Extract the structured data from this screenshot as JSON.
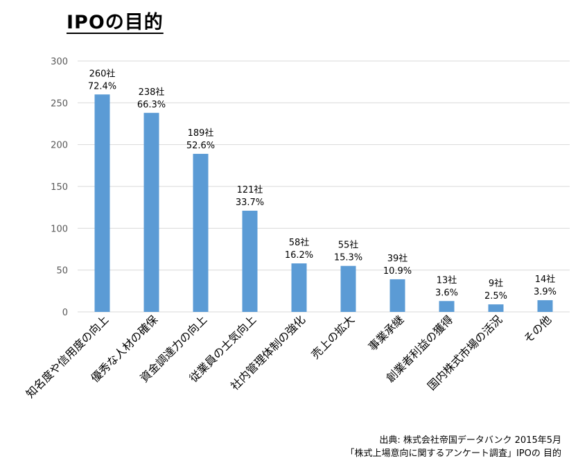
{
  "title": "IPOの目的",
  "source": {
    "line1": "出典: 株式会社帝国データバンク 2015年5月",
    "line2": "「株式上場意向に関するアンケート調査」IPOの 目的"
  },
  "colors": {
    "bar": "#5B9BD5",
    "grid": "#D9D9D9",
    "axis_text": "#595959"
  },
  "chart_data": {
    "type": "bar",
    "title": "IPOの目的",
    "xlabel": "",
    "ylabel": "",
    "ylim": [
      0,
      300
    ],
    "yticks": [
      0,
      50,
      100,
      150,
      200,
      250,
      300
    ],
    "grid": true,
    "categories": [
      "知名度や信用度の向上",
      "優秀な人材の確保",
      "資金調達力の向上",
      "従業員の士気向上",
      "社内管理体制の強化",
      "売上の拡大",
      "事業承継",
      "創業者利益の獲得",
      "国内株式市場の活況",
      "その他"
    ],
    "values": [
      260,
      238,
      189,
      121,
      58,
      55,
      39,
      13,
      9,
      14
    ],
    "count_labels": [
      "260社",
      "238社",
      "189社",
      "121社",
      "58社",
      "55社",
      "39社",
      "13社",
      "9社",
      "14社"
    ],
    "percent_labels": [
      "72.4%",
      "66.3%",
      "52.6%",
      "33.7%",
      "16.2%",
      "15.3%",
      "10.9%",
      "3.6%",
      "2.5%",
      "3.9%"
    ]
  }
}
